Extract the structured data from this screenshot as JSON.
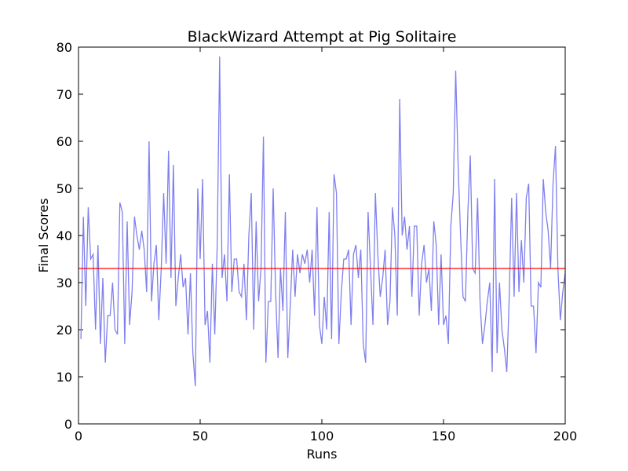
{
  "chart_data": {
    "type": "line",
    "title": "BlackWizard Attempt at Pig Solitaire",
    "x_label": "Runs",
    "y_label": "Final Scores",
    "x": [
      1,
      2,
      3,
      4,
      5,
      6,
      7,
      8,
      9,
      10,
      11,
      12,
      13,
      14,
      15,
      16,
      17,
      18,
      19,
      20,
      21,
      22,
      23,
      24,
      25,
      26,
      27,
      28,
      29,
      30,
      31,
      32,
      33,
      34,
      35,
      36,
      37,
      38,
      39,
      40,
      41,
      42,
      43,
      44,
      45,
      46,
      47,
      48,
      49,
      50,
      51,
      52,
      53,
      54,
      55,
      56,
      57,
      58,
      59,
      60,
      61,
      62,
      63,
      64,
      65,
      66,
      67,
      68,
      69,
      70,
      71,
      72,
      73,
      74,
      75,
      76,
      77,
      78,
      79,
      80,
      81,
      82,
      83,
      84,
      85,
      86,
      87,
      88,
      89,
      90,
      91,
      92,
      93,
      94,
      95,
      96,
      97,
      98,
      99,
      100,
      101,
      102,
      103,
      104,
      105,
      106,
      107,
      108,
      109,
      110,
      111,
      112,
      113,
      114,
      115,
      116,
      117,
      118,
      119,
      120,
      121,
      122,
      123,
      124,
      125,
      126,
      127,
      128,
      129,
      130,
      131,
      132,
      133,
      134,
      135,
      136,
      137,
      138,
      139,
      140,
      141,
      142,
      143,
      144,
      145,
      146,
      147,
      148,
      149,
      150,
      151,
      152,
      153,
      154,
      155,
      156,
      157,
      158,
      159,
      160,
      161,
      162,
      163,
      164,
      165,
      166,
      167,
      168,
      169,
      170,
      171,
      172,
      173,
      174,
      175,
      176,
      177,
      178,
      179,
      180,
      181,
      182,
      183,
      184,
      185,
      186,
      187,
      188,
      189,
      190,
      191,
      192,
      193,
      194,
      195,
      196,
      197,
      198,
      199,
      200
    ],
    "series": [
      {
        "color": "#7f7fef",
        "values": [
          18,
          44,
          25,
          46,
          35,
          36,
          20,
          38,
          17,
          31,
          13,
          23,
          23,
          30,
          20,
          19,
          47,
          45,
          17,
          43,
          21,
          28,
          44,
          40,
          37,
          41,
          37,
          28,
          60,
          26,
          34,
          38,
          22,
          33,
          49,
          34,
          58,
          31,
          55,
          25,
          31,
          36,
          29,
          31,
          19,
          32,
          15,
          8,
          50,
          35,
          52,
          21,
          24,
          13,
          34,
          19,
          38,
          78,
          31,
          36,
          26,
          53,
          28,
          35,
          35,
          28,
          27,
          34,
          22,
          40,
          49,
          20,
          43,
          26,
          33,
          61,
          13,
          26,
          26,
          50,
          28,
          14,
          33,
          24,
          45,
          14,
          25,
          37,
          27,
          36,
          32,
          36,
          34,
          37,
          30,
          37,
          23,
          46,
          21,
          17,
          27,
          20,
          45,
          18,
          53,
          49,
          17,
          28,
          35,
          35,
          37,
          21,
          36,
          38,
          31,
          37,
          17,
          13,
          45,
          33,
          21,
          49,
          36,
          27,
          31,
          37,
          21,
          26,
          46,
          40,
          23,
          69,
          40,
          44,
          37,
          42,
          27,
          42,
          42,
          23,
          34,
          38,
          30,
          33,
          24,
          43,
          38,
          21,
          36,
          21,
          23,
          17,
          42,
          49,
          75,
          55,
          40,
          27,
          26,
          45,
          57,
          33,
          32,
          48,
          26,
          17,
          21,
          26,
          30,
          11,
          52,
          15,
          30,
          20,
          16,
          11,
          27,
          48,
          27,
          49,
          28,
          39,
          30,
          48,
          51,
          25,
          25,
          15,
          30,
          29,
          52,
          45,
          41,
          33,
          51,
          59,
          33,
          22,
          28,
          32
        ]
      }
    ],
    "reference_line": {
      "value": 33,
      "color": "#ff0000"
    },
    "xlim": [
      0,
      200
    ],
    "xticks": [
      0,
      50,
      100,
      150,
      200
    ],
    "ylim": [
      0,
      80
    ],
    "yticks": [
      0,
      10,
      20,
      30,
      40,
      50,
      60,
      70,
      80
    ]
  }
}
